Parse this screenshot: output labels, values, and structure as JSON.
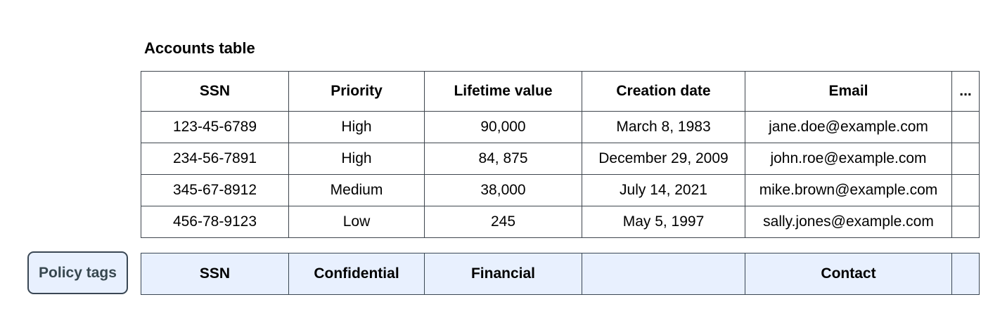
{
  "title": "Accounts table",
  "table": {
    "columns": [
      "SSN",
      "Priority",
      "Lifetime value",
      "Creation date",
      "Email",
      "..."
    ],
    "rows": [
      [
        "123-45-6789",
        "High",
        "90,000",
        "March 8, 1983",
        "jane.doe@example.com",
        ""
      ],
      [
        "234-56-7891",
        "High",
        "84, 875",
        "December 29, 2009",
        "john.roe@example.com",
        ""
      ],
      [
        "345-67-8912",
        "Medium",
        "38,000",
        "July 14, 2021",
        "mike.brown@example.com",
        ""
      ],
      [
        "456-78-9123",
        "Low",
        "245",
        "May 5, 1997",
        "sally.jones@example.com",
        ""
      ]
    ]
  },
  "policy": {
    "button_label": "Policy tags",
    "tags": [
      "SSN",
      "Confidential",
      "Financial",
      "",
      "Contact",
      ""
    ]
  },
  "colors": {
    "table_border": "#3e454d",
    "policy_fill": "#e8f0fe",
    "policy_border": "#3a4754",
    "policy_button_text": "#37474f"
  }
}
